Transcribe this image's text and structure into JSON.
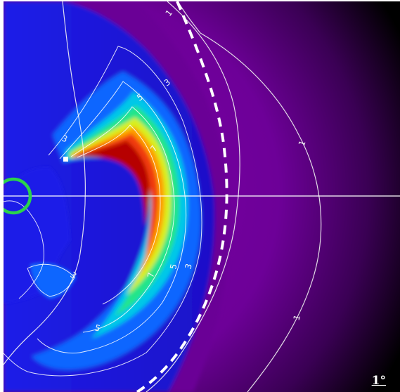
{
  "image": {
    "width": 569,
    "height": 558,
    "background": "#000000",
    "colormap": [
      "#4a0076",
      "#7a00a6",
      "#1b1ee8",
      "#0a66ff",
      "#00c7e8",
      "#22e58a",
      "#d9ef1b",
      "#ff9d00",
      "#f03a08",
      "#b60000"
    ]
  },
  "annotations": {
    "contour_labels": [
      "1",
      "1",
      "1",
      "3",
      "3",
      "3",
      "3",
      "5",
      "5",
      "5",
      "7",
      "7"
    ],
    "scale_label": "1°",
    "marker_color": "#2bd34b",
    "axis_line_color": "#ffffff",
    "dashed_boundary_color": "#ffffff"
  }
}
